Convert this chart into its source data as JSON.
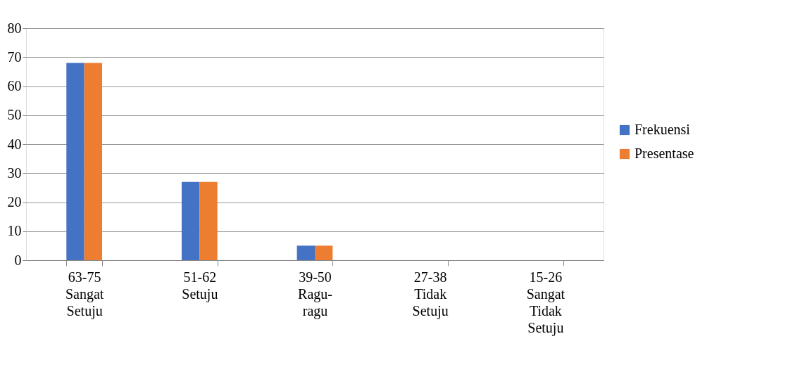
{
  "chart_data": {
    "type": "bar",
    "categories": [
      "63-75\nSangat\nSetuju",
      "51-62\nSetuju",
      "39-50\nRagu-\nragu",
      "27-38\nTidak\nSetuju",
      "15-26\nSangat\nTidak\nSetuju"
    ],
    "series": [
      {
        "name": "Frekuensi",
        "color": "#4472c4",
        "values": [
          68,
          27,
          5,
          0,
          0
        ]
      },
      {
        "name": "Presentase",
        "color": "#ed7d31",
        "values": [
          68,
          27,
          5,
          0,
          0
        ]
      }
    ],
    "ylim": [
      0,
      80
    ],
    "yticks": [
      0,
      10,
      20,
      30,
      40,
      50,
      60,
      70,
      80
    ],
    "grid": "y",
    "legend": "right"
  }
}
